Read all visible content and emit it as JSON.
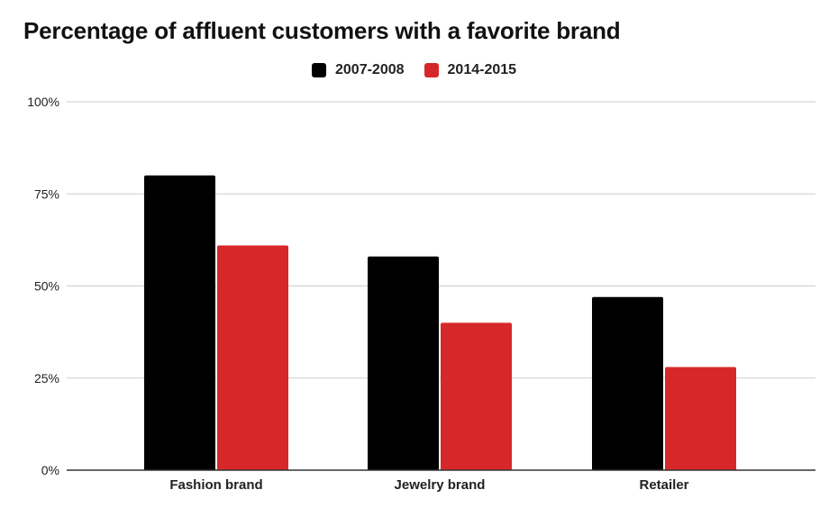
{
  "chart_data": {
    "type": "bar",
    "title": "Percentage of affluent customers with a favorite brand",
    "categories": [
      "Fashion brand",
      "Jewelry brand",
      "Retailer"
    ],
    "series": [
      {
        "name": "2007-2008",
        "values": [
          80,
          58,
          47
        ],
        "color": "#000000"
      },
      {
        "name": "2014-2015",
        "values": [
          61,
          40,
          28
        ],
        "color": "#d62828"
      }
    ],
    "ylim": [
      0,
      100
    ],
    "yticks": [
      0,
      25,
      50,
      75,
      100
    ],
    "ytick_labels": [
      "0%",
      "25%",
      "50%",
      "75%",
      "100%"
    ],
    "xlabel": "",
    "ylabel": "",
    "grid": true,
    "legend_position": "top-center"
  }
}
